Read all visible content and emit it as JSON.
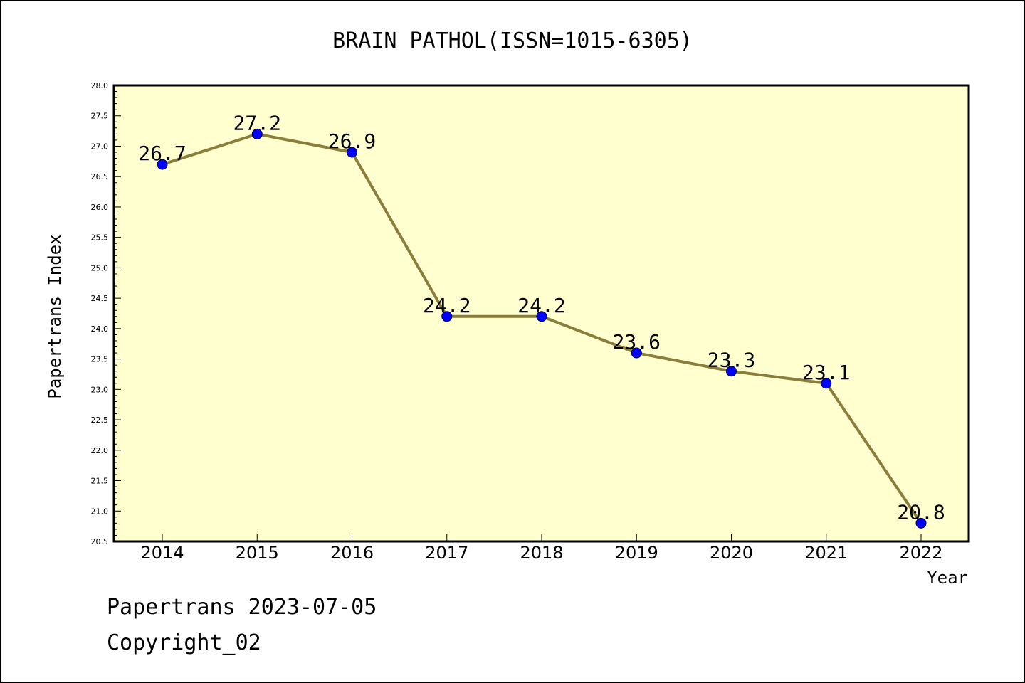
{
  "chart_data": {
    "type": "line",
    "title": "BRAIN PATHOL(ISSN=1015-6305)",
    "xlabel": "Year",
    "ylabel": "Papertrans Index",
    "x": [
      "2014",
      "2015",
      "2016",
      "2017",
      "2018",
      "2019",
      "2020",
      "2021",
      "2022"
    ],
    "series": [
      {
        "values": [
          26.7,
          27.2,
          26.9,
          24.2,
          24.2,
          23.6,
          23.3,
          23.1,
          20.8
        ]
      }
    ],
    "data_labels": [
      "26.7",
      "27.2",
      "26.9",
      "24.2",
      "24.2",
      "23.6",
      "23.3",
      "23.1",
      "20.8"
    ],
    "ylim": [
      20.5,
      28.0
    ],
    "ytick_labels": [
      "20.5",
      "21.0",
      "21.5",
      "22.0",
      "22.5",
      "23.0",
      "23.5",
      "24.0",
      "24.5",
      "25.0",
      "25.5",
      "26.0",
      "26.5",
      "27.0",
      "27.5",
      "28.0"
    ],
    "grid": false,
    "legend": "none",
    "colors": {
      "plot_bg": "#ffffd0",
      "line": "#8c7e3a",
      "marker": "#0000ff"
    }
  },
  "footer": {
    "line1": "Papertrans 2023-07-05",
    "line2": "Copyright_02"
  }
}
